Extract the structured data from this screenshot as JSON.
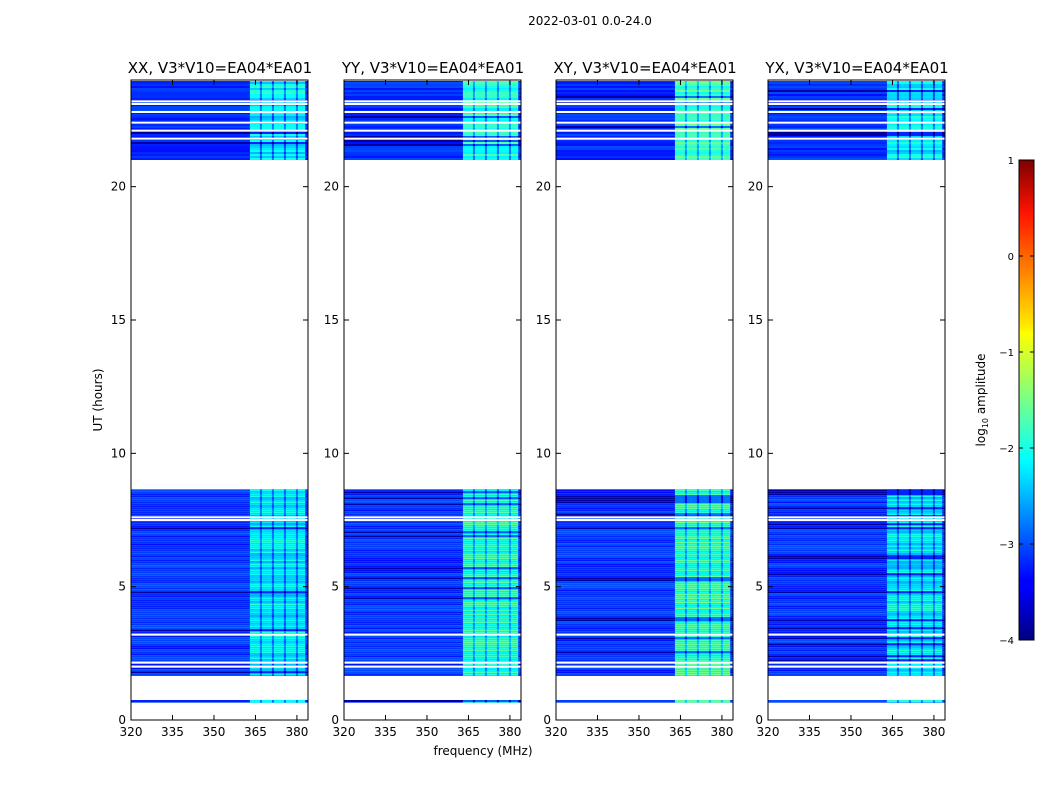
{
  "chart_data": {
    "type": "heatmap",
    "suptitle": "2022-03-01 0.0-24.0",
    "xlabel": "frequency (MHz)",
    "ylabel": "UT (hours)",
    "xlim": [
      320,
      384
    ],
    "ylim": [
      0,
      24
    ],
    "xticks": [
      320,
      335,
      350,
      365,
      380
    ],
    "yticks": [
      0,
      5,
      10,
      15,
      20
    ],
    "panels": [
      {
        "title": "XX, V3*V10=EA04*EA01"
      },
      {
        "title": "YY, V3*V10=EA04*EA01"
      },
      {
        "title": "XY, V3*V10=EA04*EA01"
      },
      {
        "title": "YX, V3*V10=EA04*EA01"
      }
    ],
    "colorbar": {
      "label_main": "log",
      "label_sub": "10",
      "label_rest": " amplitude",
      "range": [
        -4,
        1
      ],
      "ticks": [
        -4,
        -3,
        -2,
        -1,
        0,
        1
      ],
      "colormap": "jet"
    },
    "data_bands_hours": [
      [
        0.65,
        0.75
      ],
      [
        1.65,
        8.65
      ],
      [
        21.0,
        24.0
      ]
    ],
    "gap_lines_hours": [
      2.0,
      2.15,
      3.2,
      7.5,
      7.6,
      22.8,
      23.1,
      23.2,
      21.8,
      22.1,
      22.4,
      24.0
    ],
    "rfi_band_mhz": [
      363,
      383
    ],
    "rfi_level_log": [
      -2.2,
      -1.9,
      -1.8,
      -2.2
    ]
  }
}
